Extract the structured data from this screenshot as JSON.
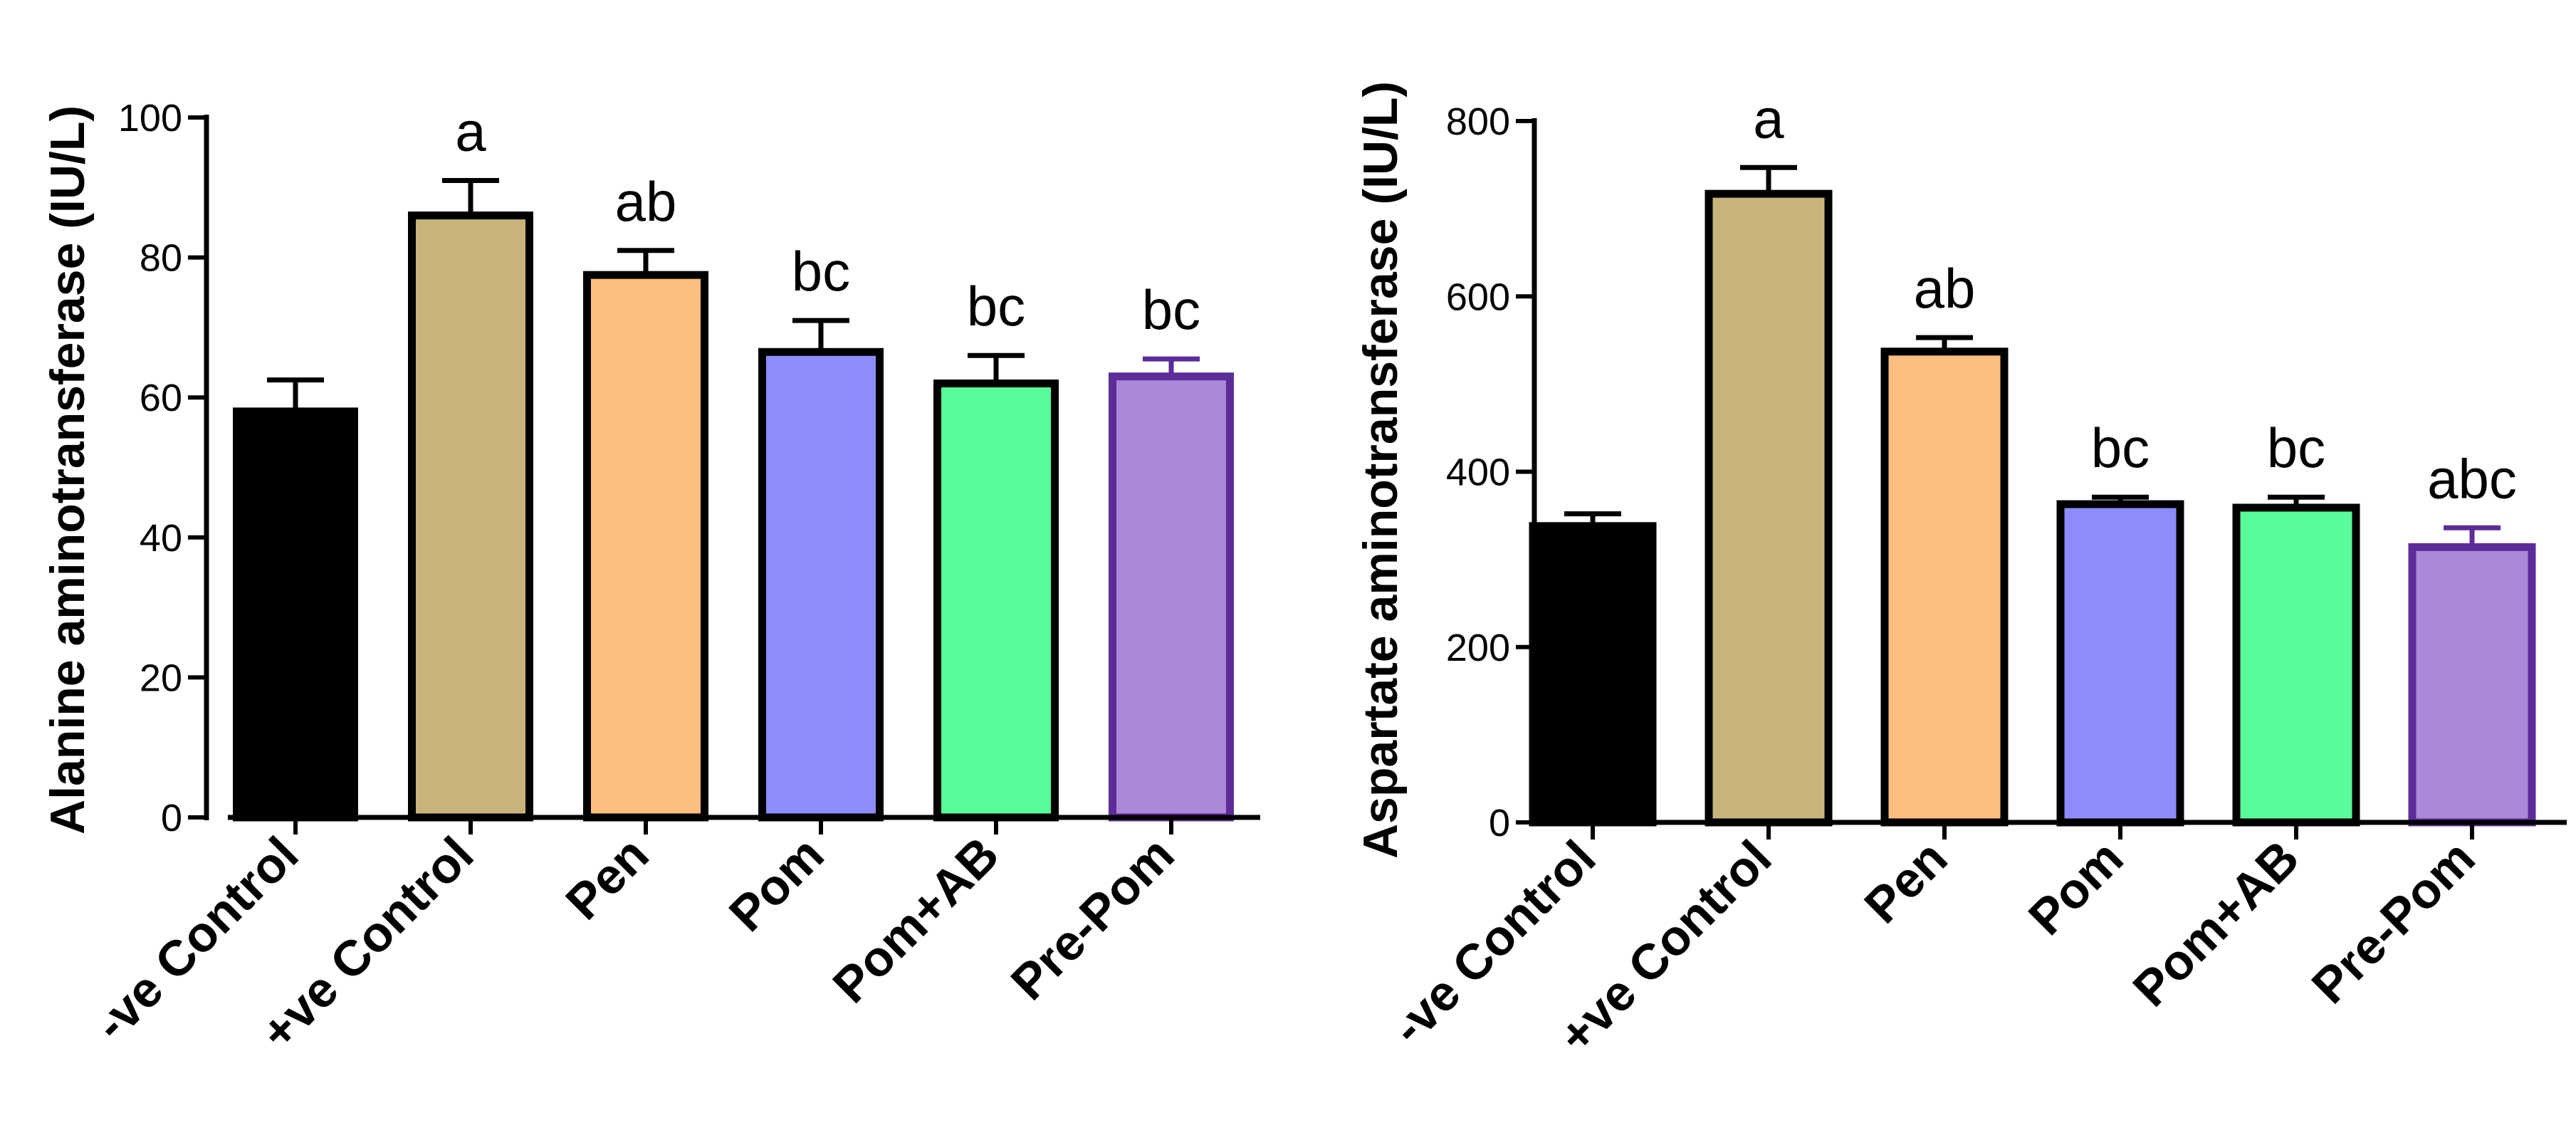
{
  "chart_data": [
    {
      "type": "bar",
      "title": "",
      "xlabel": "",
      "ylabel": "Alanine aminotransferase (IU/L)",
      "ylim": [
        0,
        100
      ],
      "yticks": [
        0,
        20,
        40,
        60,
        80,
        100
      ],
      "categories": [
        "-ve Control",
        "+ve Control",
        "Pen",
        "Pom",
        "Pom+AB",
        "Pre-Pom"
      ],
      "values": [
        58,
        86,
        77.5,
        66.5,
        62,
        63
      ],
      "errors": [
        4.5,
        5,
        3.5,
        4.5,
        4,
        2.5
      ],
      "significance": [
        "",
        "a",
        "ab",
        "bc",
        "bc",
        "bc"
      ],
      "colors": [
        "#000000",
        "#c8b47a",
        "#fcbf80",
        "#8c8cfc",
        "#58fc98",
        "#ac88d8"
      ],
      "edge_colors": [
        "#000000",
        "#000000",
        "#000000",
        "#000000",
        "#000000",
        "#5c2c98"
      ]
    },
    {
      "type": "bar",
      "title": "",
      "xlabel": "",
      "ylabel": "Aspartate aminotransferase (IU/L)",
      "ylim": [
        0,
        800
      ],
      "yticks": [
        0,
        200,
        400,
        600,
        800
      ],
      "categories": [
        "-ve Control",
        "+ve Control",
        "Pen",
        "Pom",
        "Pom+AB",
        "Pre-Pom"
      ],
      "values": [
        338,
        717,
        537,
        363,
        359,
        314
      ],
      "errors": [
        14,
        30,
        16,
        8,
        12,
        22
      ],
      "significance": [
        "",
        "a",
        "ab",
        "bc",
        "bc",
        "abc"
      ],
      "colors": [
        "#000000",
        "#c8b47a",
        "#fcbf80",
        "#8c8cfc",
        "#58fc98",
        "#ac88d8"
      ],
      "edge_colors": [
        "#000000",
        "#000000",
        "#000000",
        "#000000",
        "#000000",
        "#5c2c98"
      ]
    }
  ]
}
